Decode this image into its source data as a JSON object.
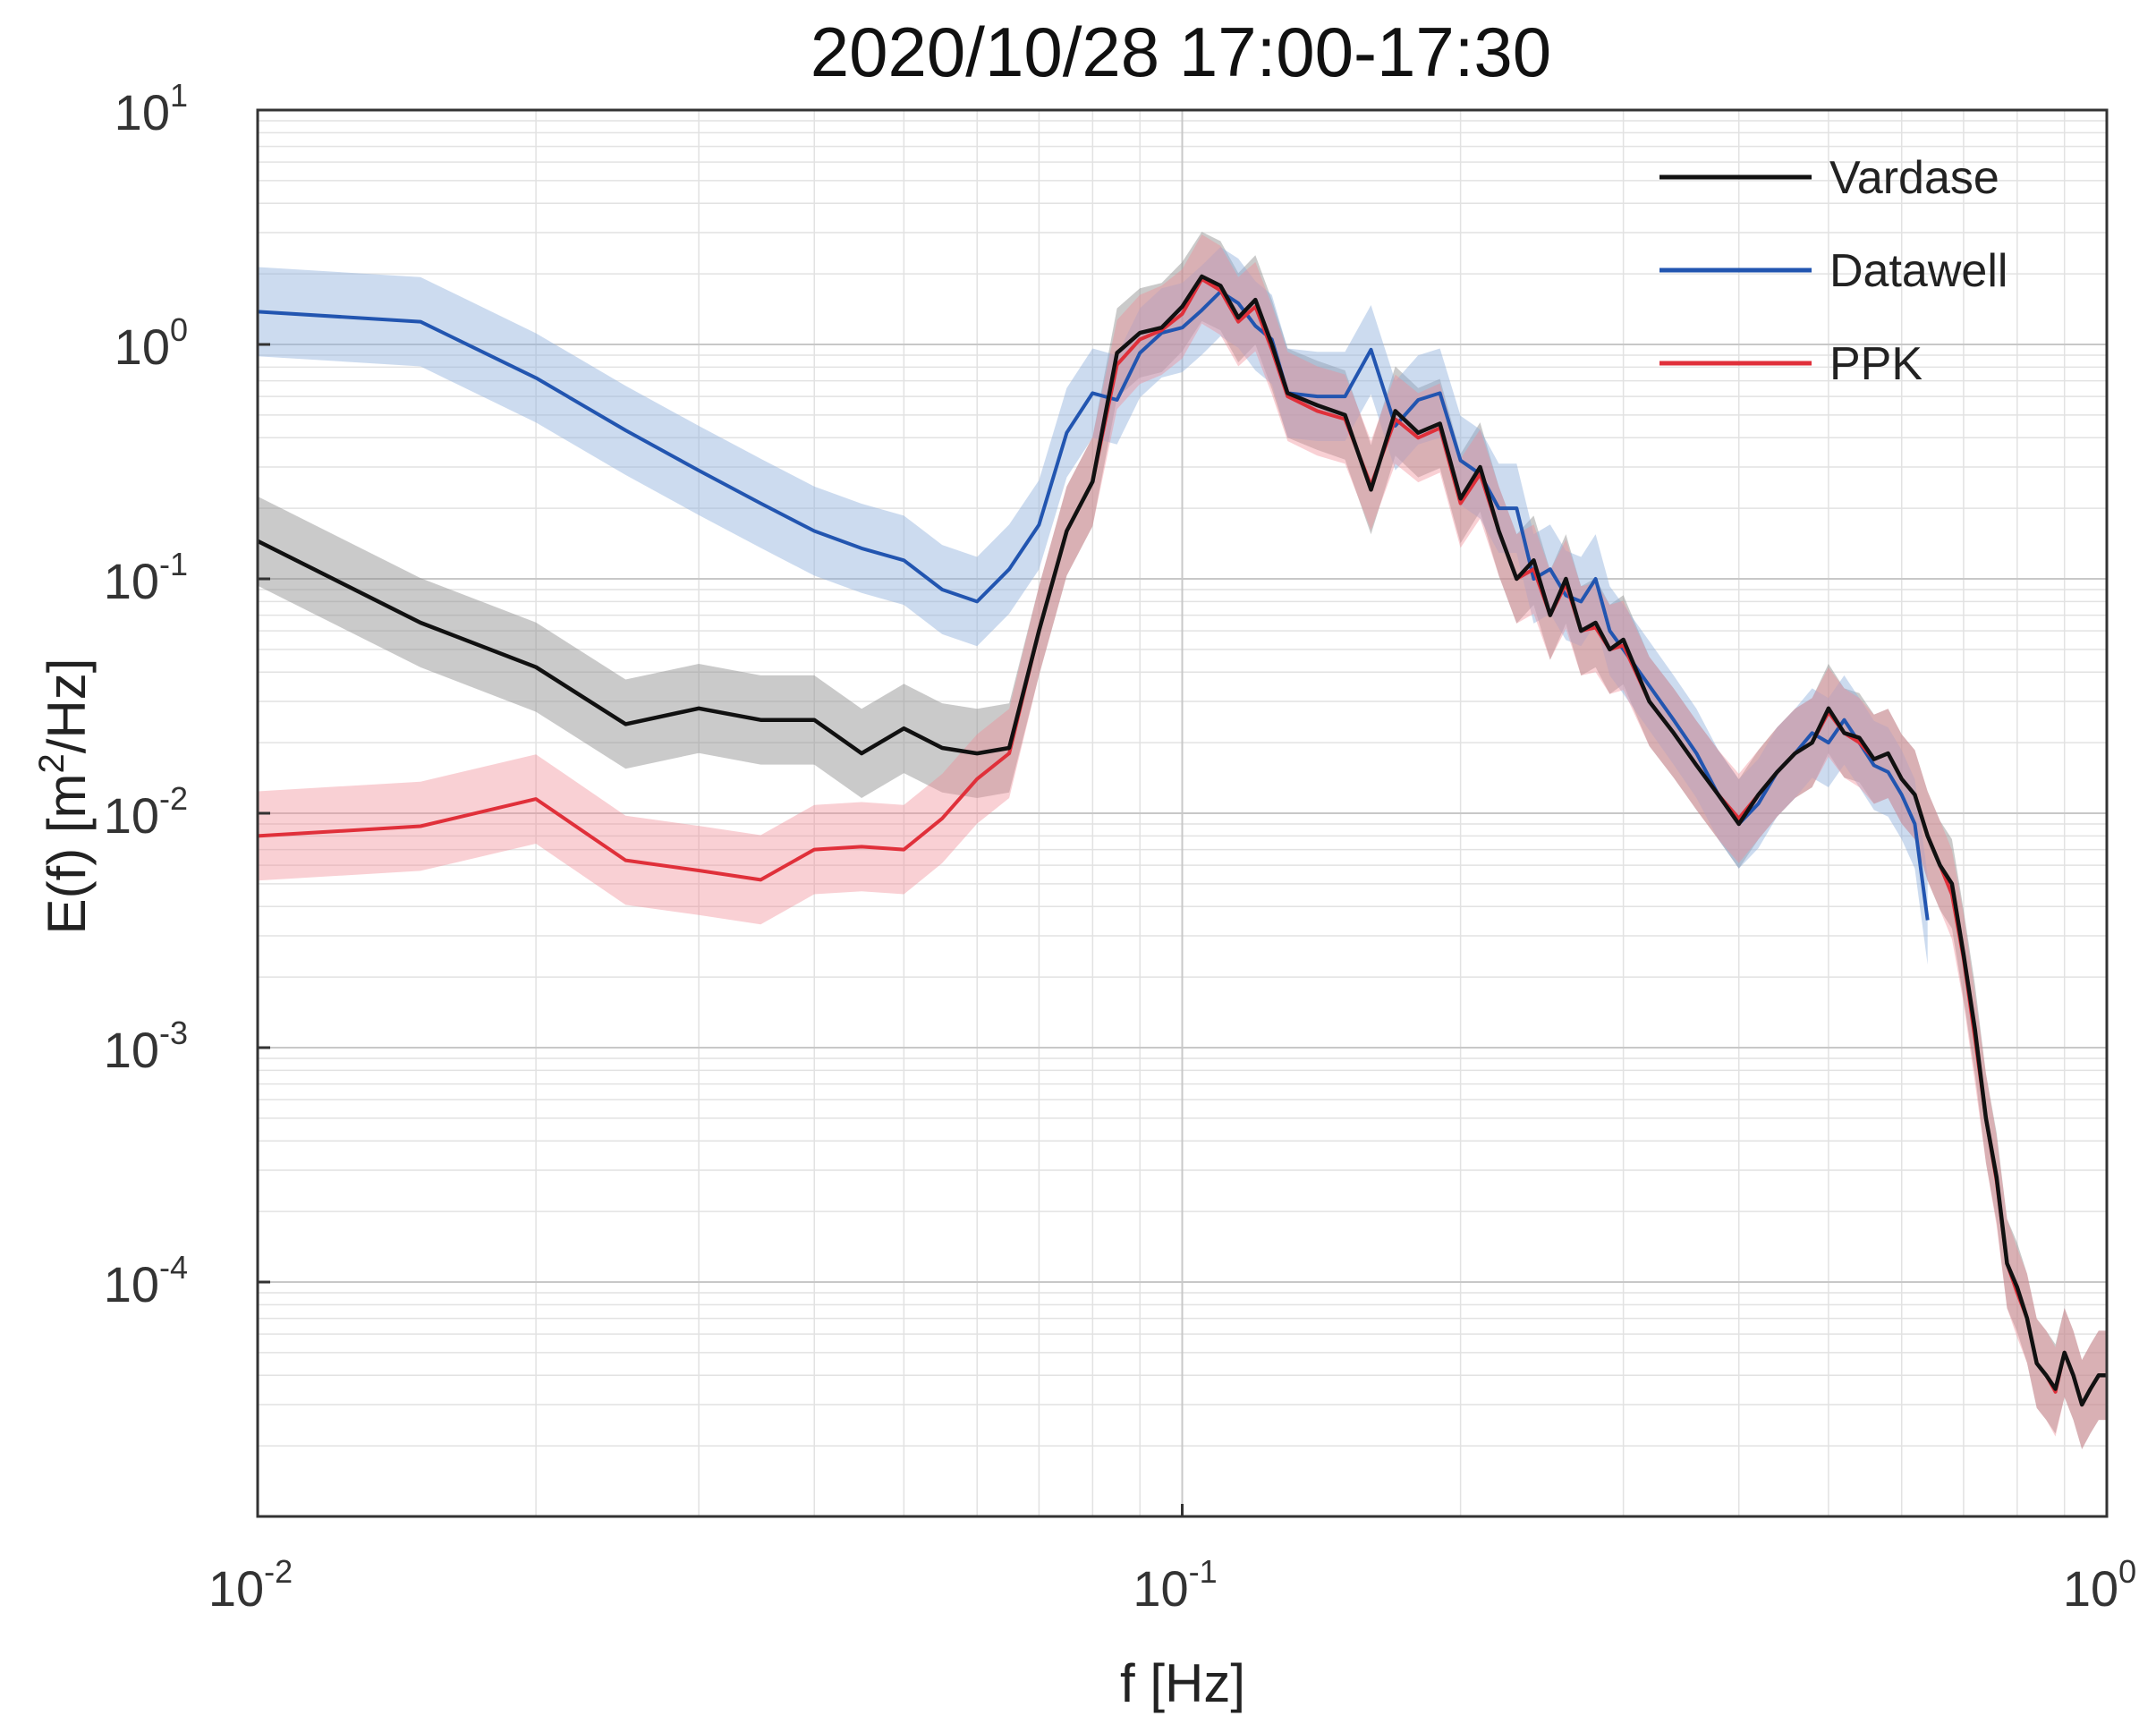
{
  "chart_data": {
    "type": "line",
    "title": "2020/10/28 17:00-17:30",
    "xlabel": "f [Hz]",
    "ylabel_main": "E(f) [m",
    "ylabel_sup": "2",
    "ylabel_tail": "/Hz]",
    "xscale": "log",
    "yscale": "log",
    "xlim": [
      0.01,
      1
    ],
    "ylim": [
      1e-05,
      10
    ],
    "grid": "on",
    "legend_position": "top-right",
    "x_ticks": [
      {
        "base": "10",
        "exp": "-2",
        "value": 0.01
      },
      {
        "base": "10",
        "exp": "-1",
        "value": 0.1
      },
      {
        "base": "10",
        "exp": "0",
        "value": 1
      }
    ],
    "y_ticks": [
      {
        "base": "10",
        "exp": "1",
        "value": 10
      },
      {
        "base": "10",
        "exp": "0",
        "value": 1
      },
      {
        "base": "10",
        "exp": "-1",
        "value": 0.1
      },
      {
        "base": "10",
        "exp": "-2",
        "value": 0.01
      },
      {
        "base": "10",
        "exp": "-3",
        "value": 0.001
      },
      {
        "base": "10",
        "exp": "-4",
        "value": 0.0001
      }
    ],
    "series": [
      {
        "name": "Vardase",
        "color": "#111111",
        "band_color": "#8a8a8a",
        "band_opacity": 0.45,
        "x": [
          0.01,
          0.015,
          0.02,
          0.025,
          0.03,
          0.035,
          0.04,
          0.045,
          0.05,
          0.055,
          0.06,
          0.065,
          0.07,
          0.075,
          0.08,
          0.085,
          0.09,
          0.095,
          0.1,
          0.105,
          0.11,
          0.115,
          0.12,
          0.125,
          0.13,
          0.14,
          0.15,
          0.16,
          0.17,
          0.18,
          0.19,
          0.2,
          0.21,
          0.22,
          0.23,
          0.24,
          0.25,
          0.26,
          0.27,
          0.28,
          0.29,
          0.3,
          0.32,
          0.34,
          0.36,
          0.38,
          0.4,
          0.42,
          0.44,
          0.46,
          0.48,
          0.5,
          0.52,
          0.54,
          0.56,
          0.58,
          0.6,
          0.62,
          0.64,
          0.66,
          0.68,
          0.7,
          0.72,
          0.74,
          0.76,
          0.78,
          0.8,
          0.82,
          0.84,
          0.86,
          0.88,
          0.9,
          0.92,
          0.94,
          0.96,
          0.98,
          1.0
        ],
        "y": [
          0.145,
          0.065,
          0.042,
          0.024,
          0.028,
          0.025,
          0.025,
          0.018,
          0.023,
          0.019,
          0.018,
          0.019,
          0.06,
          0.16,
          0.26,
          0.92,
          1.12,
          1.18,
          1.45,
          1.95,
          1.78,
          1.3,
          1.55,
          1.0,
          0.62,
          0.55,
          0.5,
          0.24,
          0.52,
          0.42,
          0.46,
          0.22,
          0.3,
          0.16,
          0.1,
          0.12,
          0.07,
          0.1,
          0.06,
          0.065,
          0.05,
          0.055,
          0.03,
          0.022,
          0.016,
          0.012,
          0.009,
          0.012,
          0.015,
          0.018,
          0.02,
          0.028,
          0.022,
          0.021,
          0.017,
          0.018,
          0.014,
          0.012,
          0.008,
          0.006,
          0.005,
          0.0025,
          0.0012,
          0.0005,
          0.00028,
          0.00012,
          9.5e-05,
          7e-05,
          4.5e-05,
          4e-05,
          3.5e-05,
          5e-05,
          4e-05,
          3e-05,
          3.5e-05,
          4e-05,
          4e-05
        ]
      },
      {
        "name": "Datawell",
        "color": "#2255b0",
        "band_color": "#8fb0dc",
        "band_opacity": 0.45,
        "x": [
          0.01,
          0.015,
          0.02,
          0.025,
          0.03,
          0.035,
          0.04,
          0.045,
          0.05,
          0.055,
          0.06,
          0.065,
          0.07,
          0.075,
          0.08,
          0.085,
          0.09,
          0.095,
          0.1,
          0.105,
          0.11,
          0.115,
          0.12,
          0.125,
          0.13,
          0.14,
          0.15,
          0.16,
          0.17,
          0.18,
          0.19,
          0.2,
          0.21,
          0.22,
          0.23,
          0.24,
          0.25,
          0.26,
          0.27,
          0.28,
          0.29,
          0.3,
          0.32,
          0.34,
          0.36,
          0.38,
          0.4,
          0.42,
          0.44,
          0.46,
          0.48,
          0.5,
          0.52,
          0.54,
          0.56,
          0.58,
          0.6,
          0.62,
          0.64
        ],
        "y": [
          1.38,
          1.25,
          0.72,
          0.43,
          0.29,
          0.21,
          0.16,
          0.135,
          0.12,
          0.09,
          0.08,
          0.11,
          0.17,
          0.42,
          0.62,
          0.58,
          0.92,
          1.12,
          1.18,
          1.4,
          1.68,
          1.5,
          1.2,
          1.05,
          0.62,
          0.6,
          0.6,
          0.95,
          0.45,
          0.58,
          0.62,
          0.32,
          0.28,
          0.2,
          0.2,
          0.1,
          0.11,
          0.085,
          0.08,
          0.1,
          0.06,
          0.05,
          0.035,
          0.025,
          0.018,
          0.012,
          0.009,
          0.011,
          0.015,
          0.018,
          0.022,
          0.02,
          0.025,
          0.02,
          0.016,
          0.015,
          0.012,
          0.009,
          0.0035
        ]
      },
      {
        "name": "PPK",
        "color": "#e0303a",
        "band_color": "#f08a93",
        "band_opacity": 0.4,
        "x": [
          0.01,
          0.015,
          0.02,
          0.025,
          0.03,
          0.035,
          0.04,
          0.045,
          0.05,
          0.055,
          0.06,
          0.065,
          0.07,
          0.075,
          0.08,
          0.085,
          0.09,
          0.095,
          0.1,
          0.105,
          0.11,
          0.115,
          0.12,
          0.125,
          0.13,
          0.14,
          0.15,
          0.16,
          0.17,
          0.18,
          0.19,
          0.2,
          0.21,
          0.22,
          0.23,
          0.24,
          0.25,
          0.26,
          0.27,
          0.28,
          0.29,
          0.3,
          0.32,
          0.34,
          0.36,
          0.38,
          0.4,
          0.42,
          0.44,
          0.46,
          0.48,
          0.5,
          0.52,
          0.54,
          0.56,
          0.58,
          0.6,
          0.62,
          0.64,
          0.66,
          0.68,
          0.7,
          0.72,
          0.74,
          0.76,
          0.78,
          0.8,
          0.82,
          0.84,
          0.86,
          0.88,
          0.9,
          0.92,
          0.94,
          0.96,
          0.98,
          1.0
        ],
        "y": [
          0.008,
          0.0088,
          0.0115,
          0.0063,
          0.0057,
          0.0052,
          0.007,
          0.0072,
          0.007,
          0.0095,
          0.014,
          0.018,
          0.06,
          0.16,
          0.26,
          0.82,
          1.05,
          1.15,
          1.35,
          1.9,
          1.7,
          1.25,
          1.45,
          0.95,
          0.6,
          0.52,
          0.48,
          0.25,
          0.48,
          0.4,
          0.44,
          0.21,
          0.28,
          0.16,
          0.1,
          0.11,
          0.07,
          0.095,
          0.06,
          0.062,
          0.05,
          0.052,
          0.03,
          0.022,
          0.016,
          0.012,
          0.0095,
          0.012,
          0.015,
          0.018,
          0.02,
          0.027,
          0.022,
          0.02,
          0.017,
          0.018,
          0.014,
          0.012,
          0.008,
          0.006,
          0.0045,
          0.0024,
          0.0011,
          0.0005,
          0.00027,
          0.00012,
          9e-05,
          7e-05,
          4.5e-05,
          4e-05,
          3.4e-05,
          5e-05,
          4e-05,
          3e-05,
          3.5e-05,
          4e-05,
          4e-05
        ]
      }
    ],
    "legend": [
      {
        "name": "Vardase",
        "color": "#111111"
      },
      {
        "name": "Datawell",
        "color": "#2255b0"
      },
      {
        "name": "PPK",
        "color": "#e0303a"
      }
    ]
  }
}
